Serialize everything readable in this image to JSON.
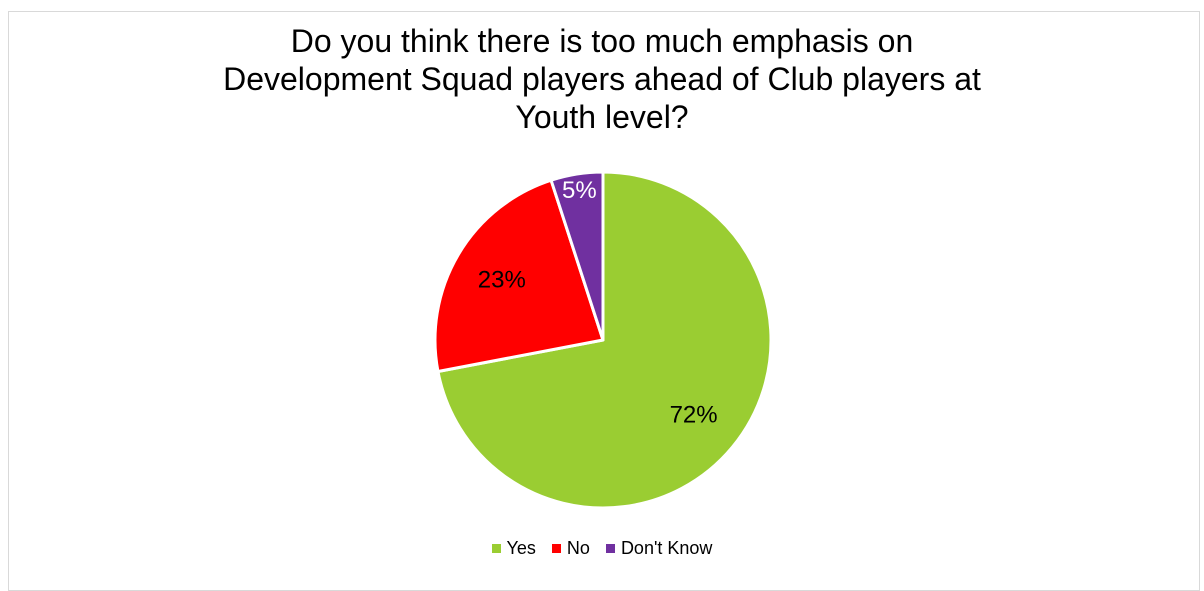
{
  "chart_data": {
    "type": "pie",
    "title_lines": [
      "Do you think there is too much emphasis on",
      "Development Squad players ahead of Club players at",
      "Youth level?"
    ],
    "categories": [
      "Yes",
      "No",
      "Don't Know"
    ],
    "values": [
      72,
      23,
      5
    ],
    "data_labels": [
      "72%",
      "23%",
      "5%"
    ],
    "colors": [
      "#9acd32",
      "#ff0000",
      "#7030a0"
    ],
    "label_colors": [
      "#000000",
      "#000000",
      "#ffffff"
    ],
    "legend_position": "bottom",
    "start_angle_deg": 0,
    "direction": "clockwise"
  }
}
